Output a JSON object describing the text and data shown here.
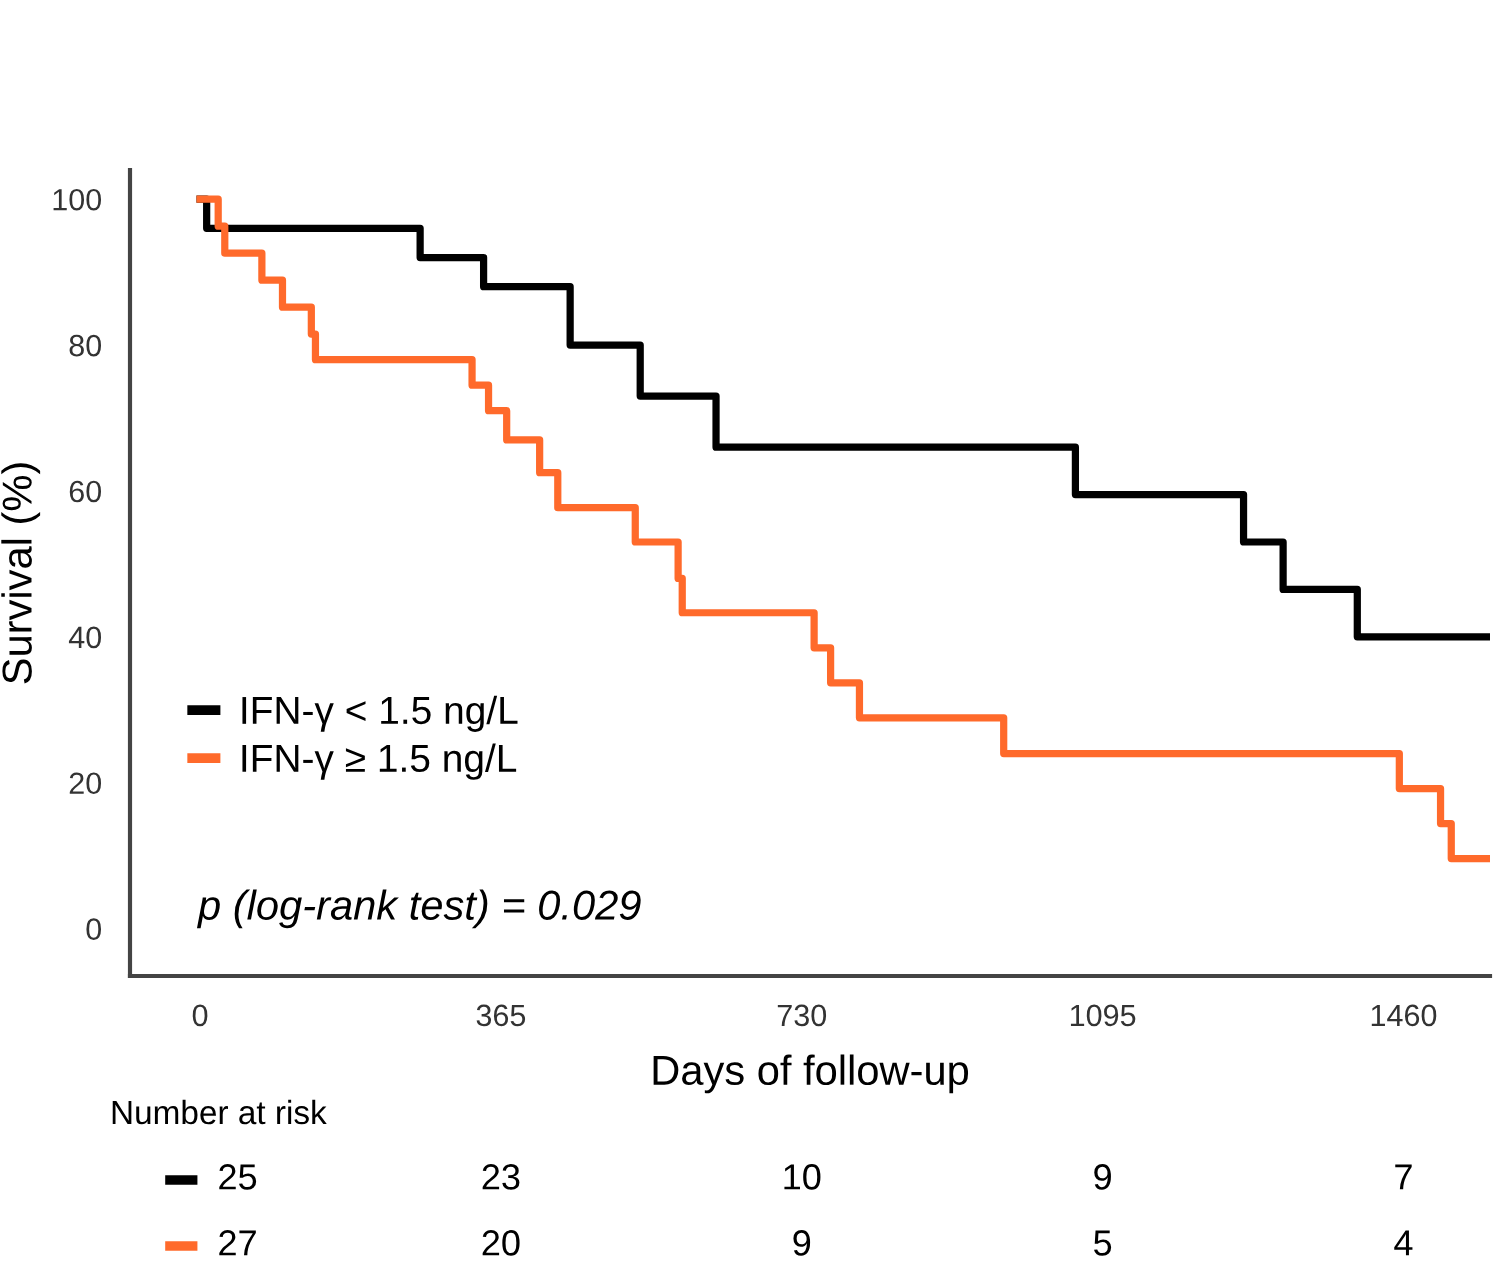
{
  "chart_data": {
    "type": "step",
    "xlabel": "Days of follow-up",
    "ylabel": "Survival (%)",
    "xlim": [
      -85,
      1565
    ],
    "ylim": [
      -6.5,
      104
    ],
    "xticks": [
      0,
      365,
      730,
      1095,
      1460
    ],
    "yticks": [
      0,
      20,
      40,
      60,
      80,
      100
    ],
    "grid": false,
    "legend": "bottom left",
    "series": [
      {
        "name": "IFN-γ < 1.5 ng/L",
        "color": "#000000",
        "x": [
          0,
          8,
          267,
          344,
          449,
          534,
          626,
          1062,
          1266,
          1314,
          1404,
          1565
        ],
        "values": [
          100,
          96,
          92,
          88,
          80,
          73,
          66,
          59.5,
          53,
          46.5,
          40,
          40
        ]
      },
      {
        "name": "IFN-γ ≥ 1.5 ng/L",
        "color": "#ff6a2b",
        "x": [
          0,
          22,
          30,
          75,
          100,
          135,
          140,
          330,
          350,
          372,
          412,
          434,
          528,
          580,
          585,
          745,
          765,
          800,
          975,
          1455,
          1505,
          1518,
          1565
        ],
        "values": [
          100,
          96.3,
          92.6,
          88.9,
          85.2,
          81.5,
          78,
          74.5,
          71,
          67,
          62.5,
          57.7,
          53,
          48,
          43.3,
          38.5,
          33.7,
          28.9,
          24,
          19.2,
          14.4,
          9.6,
          9.6
        ]
      }
    ],
    "annotations": [
      "p (log-rank test) = 0.029",
      "Number at risk",
      "25",
      "23",
      "10",
      "9",
      "7",
      "27",
      "20",
      "9",
      "5",
      "4"
    ]
  }
}
